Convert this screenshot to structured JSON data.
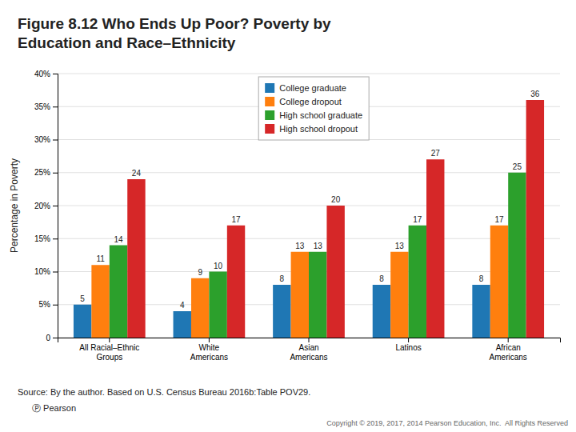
{
  "chart_data": {
    "type": "bar",
    "title": "Figure 8.12 Who Ends Up Poor? Poverty by\nEducation and Race–Ethnicity",
    "categories": [
      "All Racial–Ethnic\nGroups",
      "White\nAmericans",
      "Asian\nAmericans",
      "Latinos",
      "African\nAmericans"
    ],
    "series": [
      {
        "name": "College graduate",
        "values": [
          5,
          4,
          8,
          8,
          8
        ]
      },
      {
        "name": "College dropout",
        "values": [
          11,
          9,
          13,
          13,
          17
        ]
      },
      {
        "name": "High school graduate",
        "values": [
          14,
          10,
          13,
          17,
          25
        ]
      },
      {
        "name": "High school dropout",
        "values": [
          24,
          17,
          20,
          27,
          36
        ]
      }
    ],
    "ylabel": "Percentage in Poverty",
    "ylim": [
      0,
      40
    ],
    "yticks": [
      0,
      {
        "value": 5,
        "label": "5%"
      },
      {
        "value": 10,
        "label": "10%"
      },
      {
        "value": 15,
        "label": "15%"
      },
      {
        "value": 20,
        "label": "20%"
      },
      {
        "value": 25,
        "label": "25%"
      },
      {
        "value": 30,
        "label": "30%"
      },
      {
        "value": 35,
        "label": "35%"
      },
      {
        "value": 40,
        "label": "40%"
      }
    ],
    "grid": true,
    "legend": "top",
    "data_labels": true,
    "annotations": [
      "Source: By the author. Based on U.S. Census Bureau 2016b:Table POV29.",
      "Ⓟ Pearson",
      "Copyright © 2019, 2017, 2014 Pearson Education, Inc.  All Rights Reserved"
    ]
  }
}
